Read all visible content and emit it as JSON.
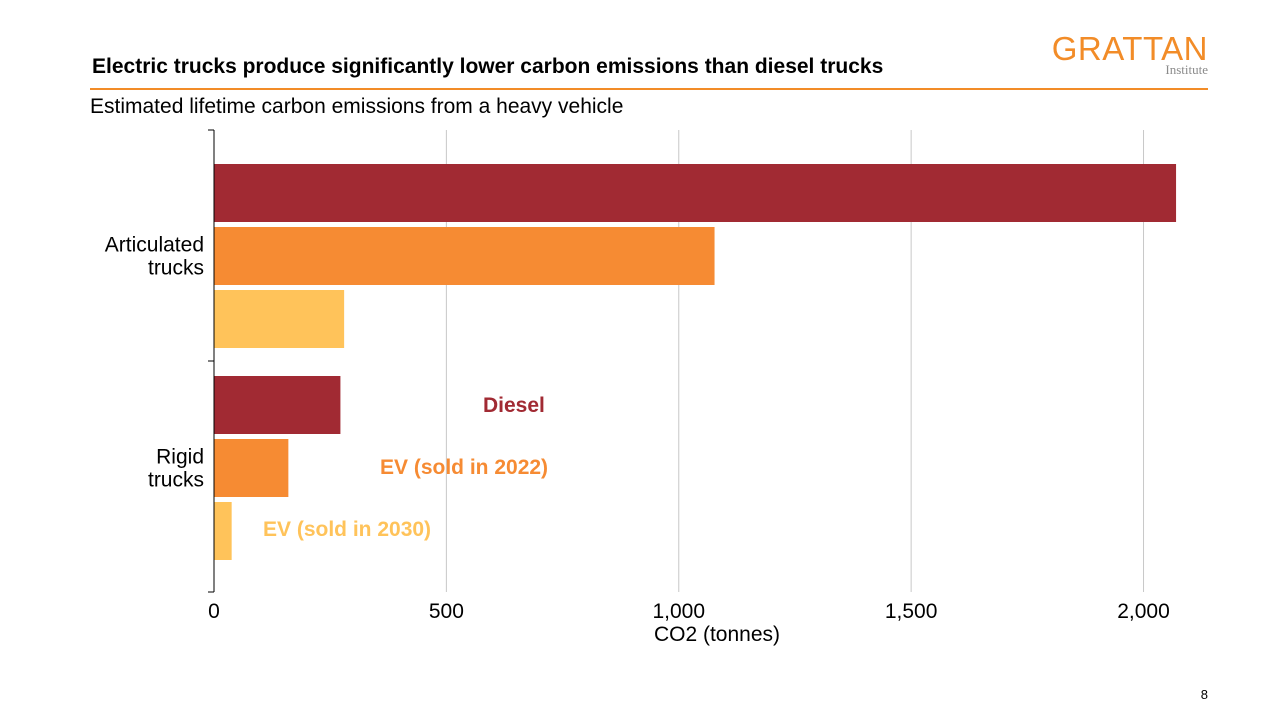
{
  "slide": {
    "title": "Electric trucks produce significantly lower carbon emissions than diesel trucks",
    "subtitle": "Estimated lifetime carbon emissions from a heavy vehicle",
    "logo_main": "GRATTAN",
    "logo_sub": "Institute",
    "page_number": "8"
  },
  "chart_data": {
    "type": "bar",
    "orientation": "horizontal",
    "categories": [
      [
        "Articulated",
        "trucks"
      ],
      [
        "Rigid",
        "trucks"
      ]
    ],
    "series": [
      {
        "name": "Diesel",
        "color": "#a12a33",
        "values": [
          2070,
          272
        ]
      },
      {
        "name": "EV (sold in 2022)",
        "color": "#f68b33",
        "values": [
          1077,
          160
        ]
      },
      {
        "name": "EV (sold in 2030)",
        "color": "#ffc35a",
        "values": [
          280,
          38
        ]
      }
    ],
    "xlabel": "CO2 (tonnes)",
    "xlim": [
      0,
      2100
    ],
    "xticks": [
      0,
      500,
      1000,
      1500,
      2000
    ],
    "xtick_labels": [
      "0",
      "500",
      "1,000",
      "1,500",
      "2,000"
    ],
    "grid": true,
    "legend": "inline-labels"
  }
}
